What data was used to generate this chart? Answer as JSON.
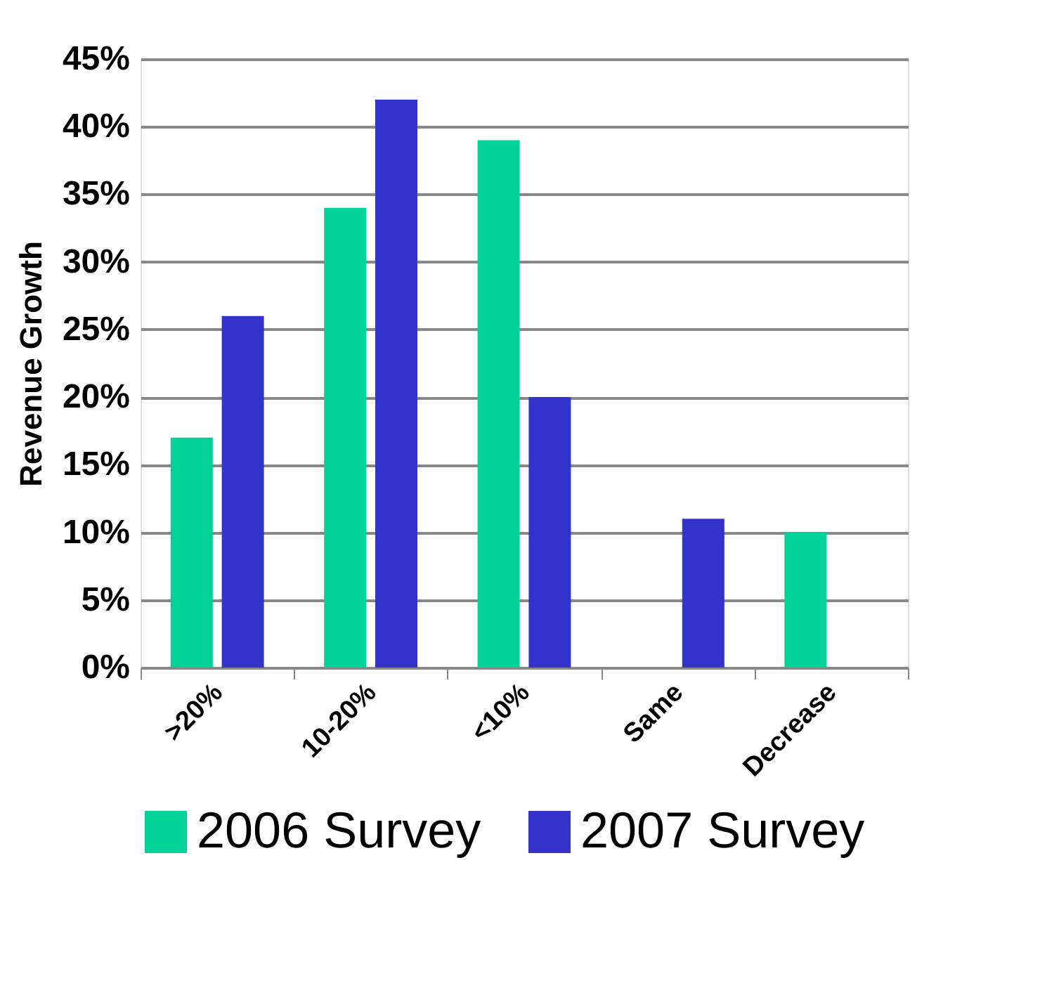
{
  "chart_data": {
    "type": "bar",
    "ylabel": "Revenue Growth",
    "categories": [
      ">20%",
      "10-20%",
      "<10%",
      "Same",
      "Decrease"
    ],
    "series": [
      {
        "name": "2006 Survey",
        "color": "#00d196",
        "values": [
          17,
          34,
          39,
          0,
          10
        ]
      },
      {
        "name": "2007 Survey",
        "color": "#3333cc",
        "values": [
          26,
          42,
          20,
          11,
          0
        ]
      }
    ],
    "ylim": [
      0,
      45
    ],
    "yticks": [
      {
        "value": 0,
        "label": "0%"
      },
      {
        "value": 5,
        "label": "5%"
      },
      {
        "value": 10,
        "label": "10%"
      },
      {
        "value": 15,
        "label": "15%"
      },
      {
        "value": 20,
        "label": "20%"
      },
      {
        "value": 25,
        "label": "25%"
      },
      {
        "value": 30,
        "label": "30%"
      },
      {
        "value": 35,
        "label": "35%"
      },
      {
        "value": 40,
        "label": "40%"
      },
      {
        "value": 45,
        "label": "45%"
      }
    ],
    "grid": "y",
    "legend": "bottom"
  }
}
